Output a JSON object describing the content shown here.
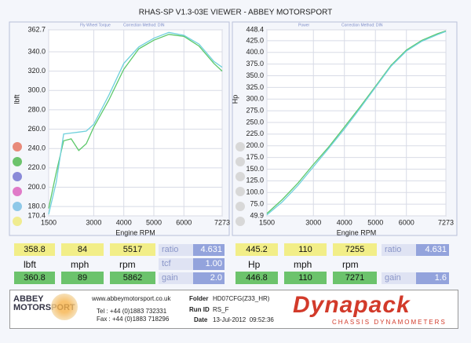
{
  "header": {
    "title": "RHAS-SP V1.3-03E VIEWER - ABBEY MOTORSPORT"
  },
  "chart_data": [
    {
      "type": "line",
      "annotations": [
        "Fly Wheel Torque",
        "Correction Method: DIN"
      ],
      "y_label": "lbft",
      "x_label": "Engine RPM",
      "x": [
        1500,
        1750,
        2000,
        2250,
        2500,
        2750,
        3000,
        3500,
        4000,
        4500,
        5000,
        5500,
        6000,
        6500,
        7000,
        7273
      ],
      "series": [
        {
          "color": "#5cc86a",
          "values": [
            178,
            215,
            248,
            250,
            238,
            245,
            262,
            290,
            322,
            343,
            352,
            358,
            356,
            346,
            328,
            320
          ]
        },
        {
          "color": "#6fd0dc",
          "values": [
            172,
            205,
            255,
            256,
            257,
            258,
            265,
            295,
            328,
            345,
            354,
            360,
            357,
            348,
            330,
            324
          ]
        }
      ],
      "xlim": [
        1500,
        7273
      ],
      "xticks": [
        1500,
        3000,
        4000,
        5000,
        6000,
        7273
      ],
      "ylim": [
        170.4,
        362.7
      ],
      "yticks": [
        170.4,
        {
          "value": 180,
          "label": "180.0"
        },
        {
          "value": 200,
          "label": "200.0"
        },
        {
          "value": 220,
          "label": "220.0"
        },
        {
          "value": 240,
          "label": "240.0"
        },
        {
          "value": 260,
          "label": "260.0"
        },
        {
          "value": 280,
          "label": "280.0"
        },
        {
          "value": 300,
          "label": "300.0"
        },
        {
          "value": 320,
          "label": "320.0"
        },
        {
          "value": 340,
          "label": "340.0"
        },
        362.7
      ],
      "grid": true
    },
    {
      "type": "line",
      "annotations": [
        "Power",
        "Correction Method: DIN"
      ],
      "y_label": "Hp",
      "x_label": "Engine RPM",
      "x": [
        1500,
        2000,
        2500,
        3000,
        3500,
        4000,
        4500,
        5000,
        5500,
        6000,
        6500,
        7000,
        7273
      ],
      "series": [
        {
          "color": "#5cc86a",
          "values": [
            55,
            85,
            120,
            160,
            198,
            240,
            283,
            327,
            372,
            405,
            426,
            440,
            446
          ]
        },
        {
          "color": "#6fd0dc",
          "values": [
            52,
            80,
            115,
            155,
            195,
            236,
            280,
            325,
            370,
            403,
            424,
            438,
            445
          ]
        }
      ],
      "xlim": [
        1500,
        7273
      ],
      "xticks": [
        1500,
        3000,
        4000,
        5000,
        6000,
        7273
      ],
      "ylim": [
        49.9,
        448.4
      ],
      "yticks": [
        49.9,
        {
          "value": 75,
          "label": "75.0"
        },
        {
          "value": 100,
          "label": "100.0"
        },
        {
          "value": 125,
          "label": "125.0"
        },
        {
          "value": 150,
          "label": "150.0"
        },
        {
          "value": 175,
          "label": "175.0"
        },
        {
          "value": 200,
          "label": "200.0"
        },
        {
          "value": 225,
          "label": "225.0"
        },
        {
          "value": 250,
          "label": "250.0"
        },
        {
          "value": 275,
          "label": "275.0"
        },
        {
          "value": 300,
          "label": "300.0"
        },
        {
          "value": 325,
          "label": "325.0"
        },
        {
          "value": 350,
          "label": "350.0"
        },
        {
          "value": 375,
          "label": "375.0"
        },
        {
          "value": 400,
          "label": "400.0"
        },
        {
          "value": 425,
          "label": "425.0"
        },
        448.4
      ],
      "grid": true
    }
  ],
  "readouts": {
    "left": {
      "top": [
        "358.8",
        "84",
        "5517"
      ],
      "labels": [
        "lbft",
        "mph",
        "rpm"
      ],
      "bottom": [
        "360.8",
        "89",
        "5862"
      ],
      "side": [
        [
          "ratio",
          "4.631"
        ],
        [
          "tcf",
          "1.00"
        ],
        [
          "gain",
          "2.0"
        ]
      ]
    },
    "right": {
      "top": [
        "445.2",
        "110",
        "7255"
      ],
      "labels": [
        "Hp",
        "mph",
        "rpm"
      ],
      "bottom": [
        "446.8",
        "110",
        "7271"
      ],
      "side": [
        [
          "ratio",
          "4.631"
        ],
        [
          "gain",
          "1.6"
        ]
      ]
    }
  },
  "footer": {
    "logo": [
      "ABBEY",
      "MOTORSPORT"
    ],
    "website": "www.abbeymotorsport.co.uk",
    "tel": "Tel : +44 (0)1883 732331",
    "fax": "Fax : +44 (0)1883 718296",
    "fields": [
      [
        "Folder",
        "HD07CFG(Z33_HR)"
      ],
      [
        "Run ID",
        "RS_F"
      ],
      [
        "Date",
        "13-Jul-2012  09:52:36"
      ]
    ],
    "brand": "Dynapack",
    "brand_sub": "CHASSIS DYNAMOMETERS"
  }
}
